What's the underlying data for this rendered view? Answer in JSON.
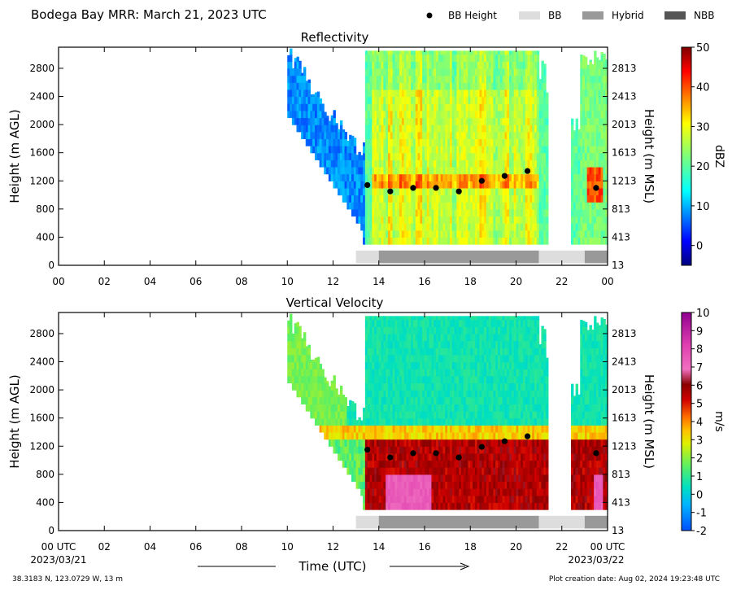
{
  "figure": {
    "main_title": "Bodega Bay MRR:  March 21, 2023 UTC",
    "legend": [
      {
        "label": "BB Height",
        "kind": "dot",
        "color": "#000000"
      },
      {
        "label": "BB",
        "kind": "swatch",
        "color": "#dddddd"
      },
      {
        "label": "Hybrid",
        "kind": "swatch",
        "color": "#999999"
      },
      {
        "label": "NBB",
        "kind": "swatch",
        "color": "#555555"
      }
    ],
    "x_title": "Time (UTC)",
    "x_start_date": "2023/03/21",
    "x_end_date": "2023/03/22",
    "location": "38.3183 N, 123.0729 W, 13 m",
    "creation_date": "Plot creation date: Aug 02, 2024 19:23:48 UTC"
  },
  "chart_data": [
    {
      "type": "heatmap",
      "title": "Reflectivity",
      "ylabel": "Height (m AGL)",
      "ylabel_right": "Height (m MSL)",
      "x_tick_labels": [
        "00",
        "02",
        "04",
        "06",
        "08",
        "10",
        "12",
        "14",
        "16",
        "18",
        "20",
        "22",
        "00"
      ],
      "xlim_hours": [
        0,
        24
      ],
      "y_ticks": [
        0,
        400,
        800,
        1200,
        1600,
        2000,
        2400,
        2800
      ],
      "y_ticks_right": [
        "13",
        "413",
        "813",
        "1213",
        "1613",
        "2013",
        "2413",
        "2813"
      ],
      "ylim": [
        0,
        3100
      ],
      "colorbar": {
        "label": "dBZ",
        "range": [
          -5,
          50
        ],
        "ticks": [
          0,
          10,
          20,
          30,
          40,
          50
        ],
        "scheme": "jet"
      },
      "bb_height": {
        "x": [
          13.5,
          14.5,
          15.5,
          16.5,
          17.5,
          18.5,
          19.5,
          20.5,
          23.5
        ],
        "y": [
          1140,
          1050,
          1100,
          1100,
          1050,
          1200,
          1270,
          1340,
          1100
        ]
      },
      "bb_type_bar": [
        {
          "start": 13.0,
          "end": 14.0,
          "class": "BB"
        },
        {
          "start": 14.0,
          "end": 21.0,
          "class": "Hybrid"
        },
        {
          "start": 21.0,
          "end": 23.0,
          "class": "BB"
        },
        {
          "start": 23.0,
          "end": 24.0,
          "class": "Hybrid"
        }
      ]
    },
    {
      "type": "heatmap",
      "title": "Vertical Velocity",
      "ylabel": "Height (m AGL)",
      "ylabel_right": "Height (m MSL)",
      "x_tick_labels": [
        "00 UTC",
        "02",
        "04",
        "06",
        "08",
        "10",
        "12",
        "14",
        "16",
        "18",
        "20",
        "22",
        "00 UTC"
      ],
      "xlim_hours": [
        0,
        24
      ],
      "y_ticks": [
        0,
        400,
        800,
        1200,
        1600,
        2000,
        2400,
        2800
      ],
      "y_ticks_right": [
        "13",
        "413",
        "813",
        "1213",
        "1613",
        "2013",
        "2413",
        "2813"
      ],
      "ylim": [
        0,
        3100
      ],
      "colorbar": {
        "label": "m/s",
        "range": [
          -2,
          10
        ],
        "ticks": [
          -2,
          -1,
          0,
          1,
          2,
          3,
          4,
          5,
          6,
          7,
          8,
          9,
          10
        ],
        "scheme": "velocity"
      },
      "bb_height": {
        "x": [
          13.5,
          14.5,
          15.5,
          16.5,
          17.5,
          18.5,
          19.5,
          20.5,
          23.5
        ],
        "y": [
          1150,
          1040,
          1100,
          1100,
          1040,
          1190,
          1270,
          1340,
          1100
        ]
      },
      "bb_type_bar": [
        {
          "start": 13.0,
          "end": 14.0,
          "class": "BB"
        },
        {
          "start": 14.0,
          "end": 21.0,
          "class": "Hybrid"
        },
        {
          "start": 21.0,
          "end": 23.0,
          "class": "BB"
        },
        {
          "start": 23.0,
          "end": 24.0,
          "class": "Hybrid"
        }
      ]
    }
  ]
}
